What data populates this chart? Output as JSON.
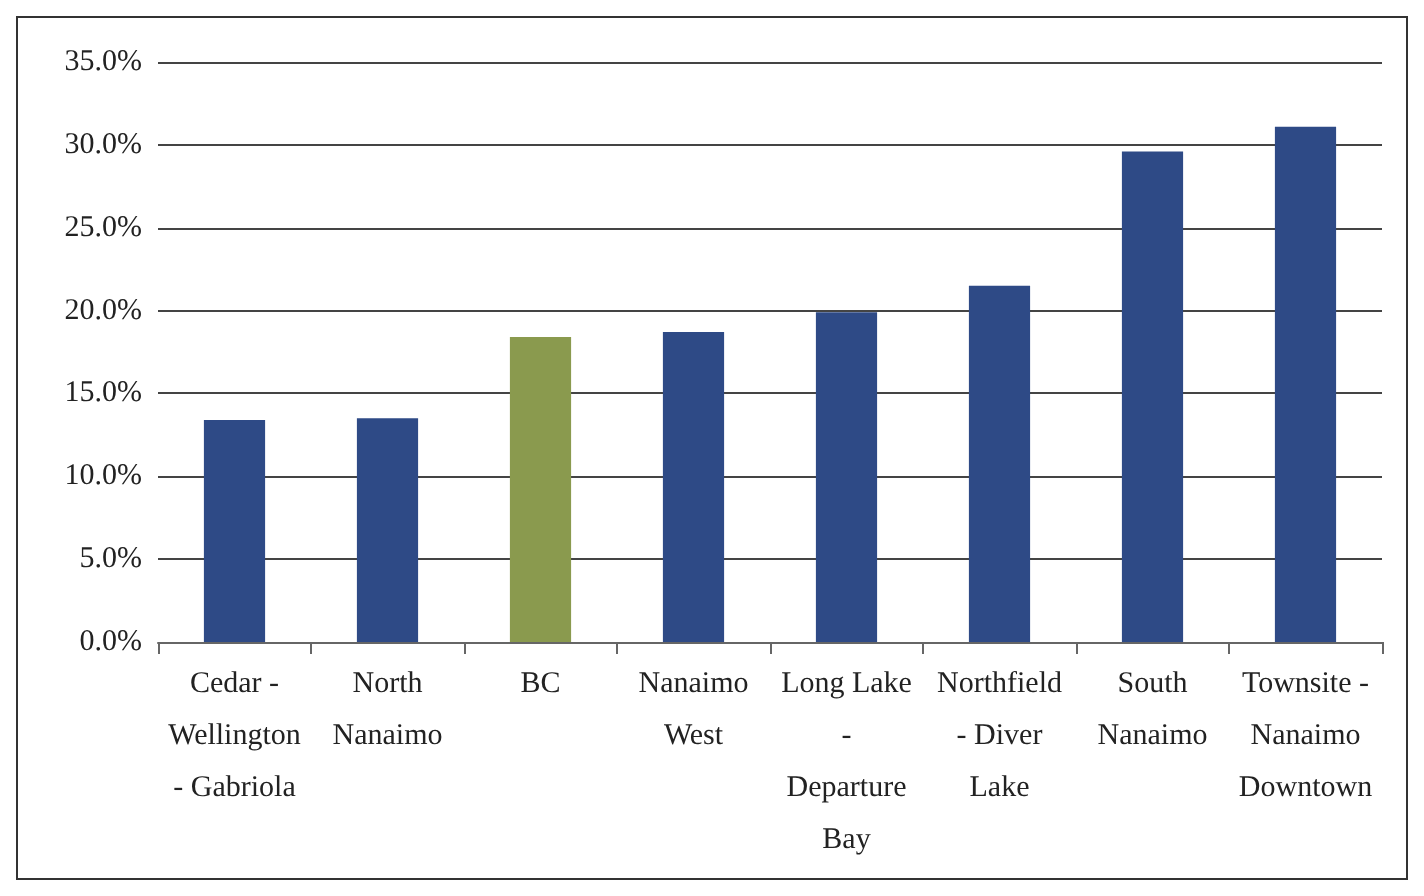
{
  "chart_data": {
    "type": "bar",
    "categories": [
      "Cedar -\nWellington\n- Gabriola",
      "North\nNanaimo",
      "BC",
      "Nanaimo\nWest",
      "Long Lake\n-\nDeparture\nBay",
      "Northfield\n- Diver\nLake",
      "South\nNanaimo",
      "Townsite -\nNanaimo\nDowntown"
    ],
    "values": [
      13.4,
      13.5,
      18.4,
      18.7,
      19.9,
      21.5,
      29.6,
      31.1
    ],
    "colors": [
      "#2e4a86",
      "#2e4a86",
      "#8a9a4e",
      "#2e4a86",
      "#2e4a86",
      "#2e4a86",
      "#2e4a86",
      "#2e4a86"
    ],
    "ylim": [
      0,
      35
    ],
    "yticks": [
      {
        "value": 0,
        "label": "0.0%"
      },
      {
        "value": 5,
        "label": "5.0%"
      },
      {
        "value": 10,
        "label": "10.0%"
      },
      {
        "value": 15,
        "label": "15.0%"
      },
      {
        "value": 20,
        "label": "20.0%"
      },
      {
        "value": 25,
        "label": "25.0%"
      },
      {
        "value": 30,
        "label": "30.0%"
      },
      {
        "value": 35,
        "label": "35.0%"
      }
    ],
    "grid": "y"
  }
}
